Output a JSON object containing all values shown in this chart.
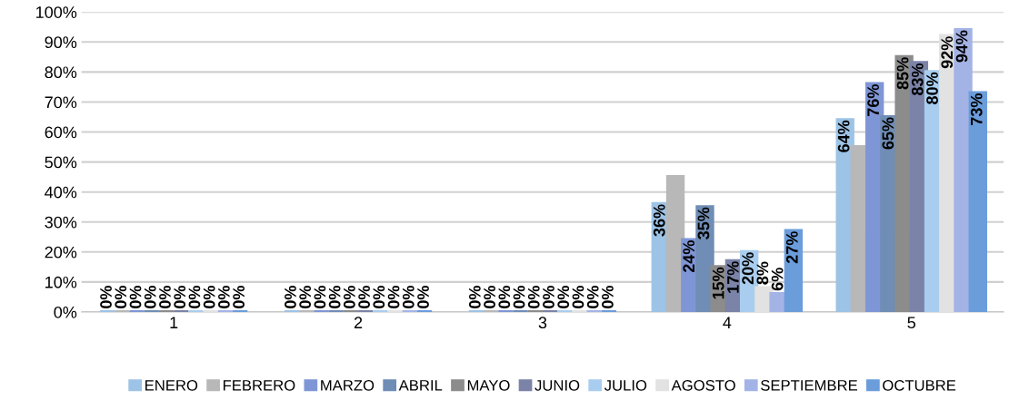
{
  "chart_data": {
    "type": "bar",
    "categories": [
      "1",
      "2",
      "3",
      "4",
      "5"
    ],
    "series": [
      {
        "name": "ENERO",
        "color": "#9dc3e6",
        "values": [
          0,
          0,
          0,
          36,
          64
        ],
        "value_labels": [
          "0%",
          "0%",
          "0%",
          "36%",
          "64%"
        ]
      },
      {
        "name": "FEBRERO",
        "color": "#b8b8b8",
        "values": [
          0,
          0,
          0,
          45,
          55
        ],
        "value_labels": [
          "0%",
          "0%",
          "0%",
          null,
          null
        ]
      },
      {
        "name": "MARZO",
        "color": "#7f96d6",
        "values": [
          0,
          0,
          0,
          24,
          76
        ],
        "value_labels": [
          "0%",
          "0%",
          "0%",
          "24%",
          "76%"
        ]
      },
      {
        "name": "ABRIL",
        "color": "#6f8db5",
        "values": [
          0,
          0,
          0,
          35,
          65
        ],
        "value_labels": [
          "0%",
          "0%",
          "0%",
          "35%",
          "65%"
        ]
      },
      {
        "name": "MAYO",
        "color": "#8c8c8c",
        "values": [
          0,
          0,
          0,
          15,
          85
        ],
        "value_labels": [
          "0%",
          "0%",
          "0%",
          "15%",
          "85%"
        ]
      },
      {
        "name": "JUNIO",
        "color": "#7b83a8",
        "values": [
          0,
          0,
          0,
          17,
          83
        ],
        "value_labels": [
          "0%",
          "0%",
          "0%",
          "17%",
          "83%"
        ]
      },
      {
        "name": "JULIO",
        "color": "#a9cdee",
        "values": [
          0,
          0,
          0,
          20,
          80
        ],
        "value_labels": [
          "0%",
          "0%",
          "0%",
          "20%",
          "80%"
        ]
      },
      {
        "name": "AGOSTO",
        "color": "#e2e2e2",
        "values": [
          0,
          0,
          0,
          8,
          92
        ],
        "value_labels": [
          "0%",
          "0%",
          "0%",
          "8%",
          "92%"
        ]
      },
      {
        "name": "SEPTIEMBRE",
        "color": "#a4b3e6",
        "values": [
          0,
          0,
          0,
          6,
          94
        ],
        "value_labels": [
          "0%",
          "0%",
          "0%",
          "6%",
          "94%"
        ]
      },
      {
        "name": "OCTUBRE",
        "color": "#6b9ddb",
        "values": [
          0,
          0,
          0,
          27,
          73
        ],
        "value_labels": [
          "0%",
          "0%",
          "0%",
          "27%",
          "73%"
        ]
      }
    ],
    "ylim": [
      0,
      100
    ],
    "yticks": [
      {
        "value": 0,
        "label": "0%"
      },
      {
        "value": 10,
        "label": "10%"
      },
      {
        "value": 20,
        "label": "20%"
      },
      {
        "value": 30,
        "label": "30%"
      },
      {
        "value": 40,
        "label": "40%"
      },
      {
        "value": 50,
        "label": "50%"
      },
      {
        "value": 60,
        "label": "60%"
      },
      {
        "value": 70,
        "label": "70%"
      },
      {
        "value": 80,
        "label": "80%"
      },
      {
        "value": 90,
        "label": "90%"
      },
      {
        "value": 100,
        "label": "100%"
      }
    ],
    "grid": "y",
    "legend": "bottom"
  }
}
